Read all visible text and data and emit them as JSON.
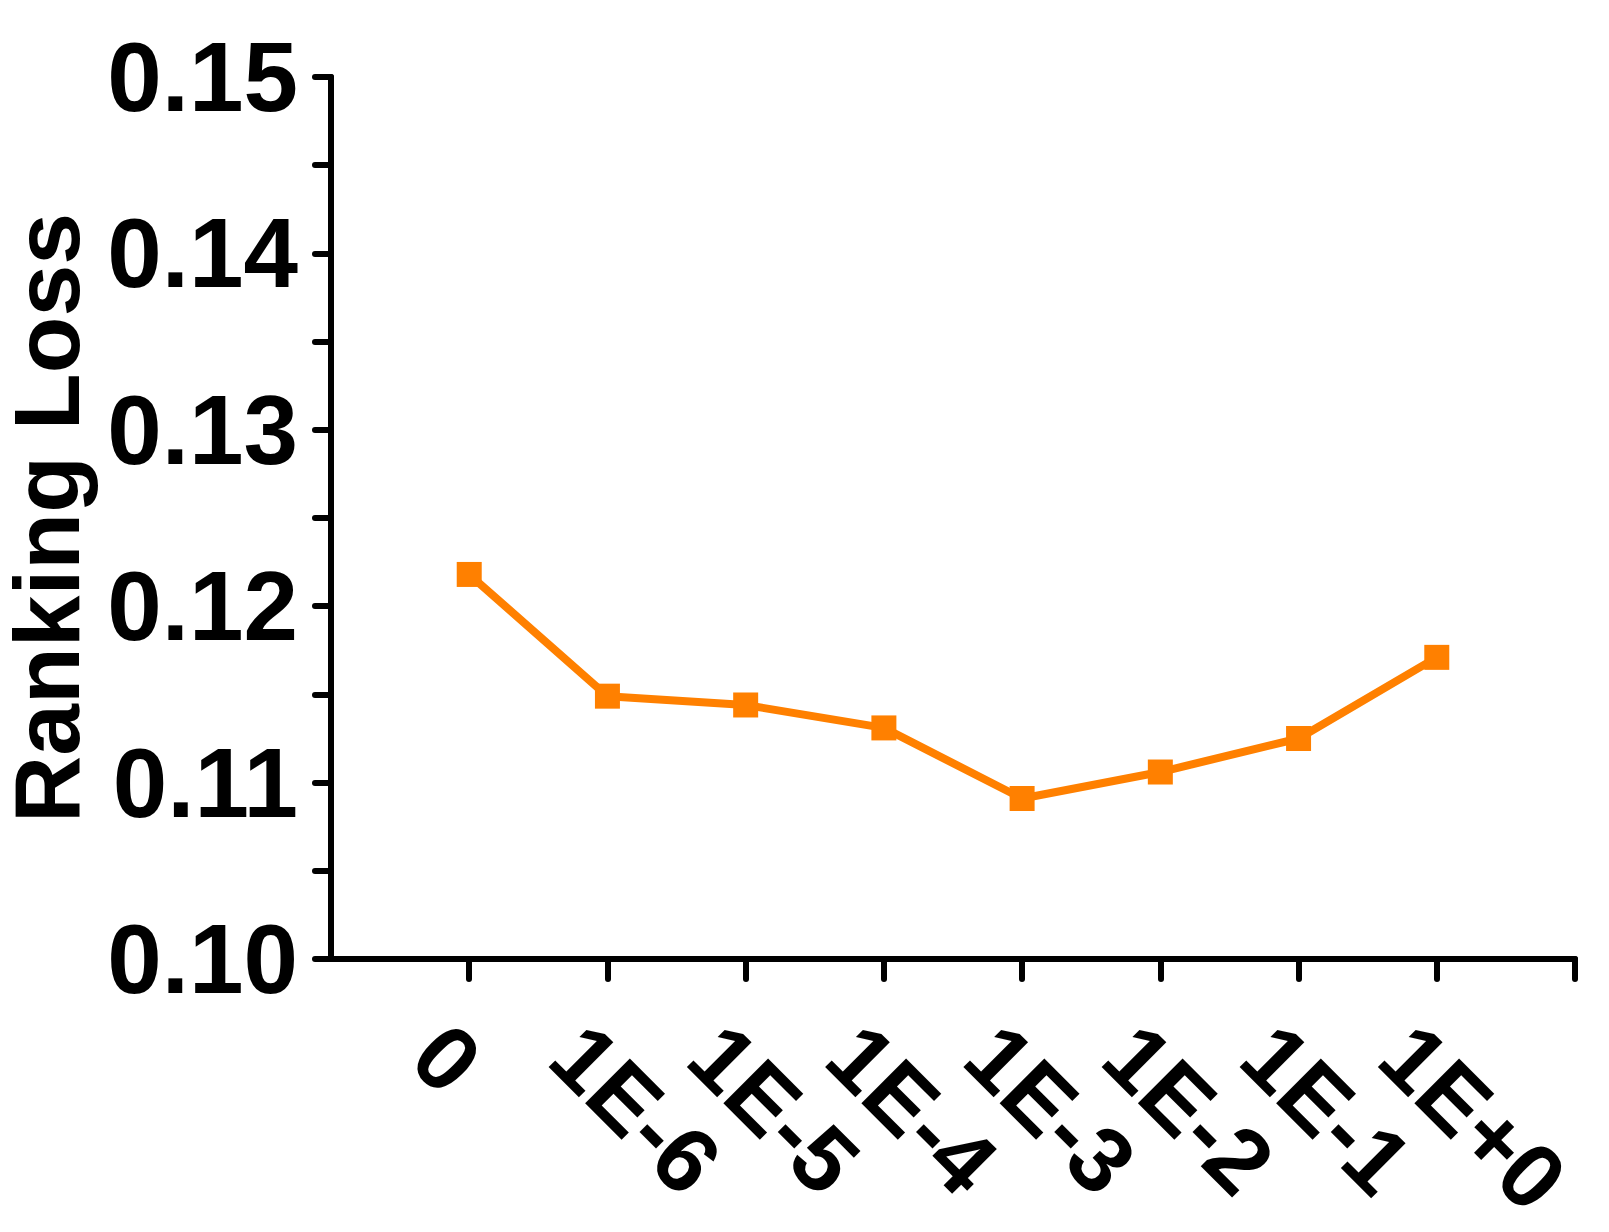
{
  "chart_data": {
    "type": "line",
    "ylabel": "Ranking Loss",
    "categories": [
      "0",
      "1E-6",
      "1E-5",
      "1E-4",
      "1E-3",
      "1E-2",
      "1E-1",
      "1E+0"
    ],
    "series": [
      {
        "color": "#ff8000",
        "values": [
          0.1218,
          0.1149,
          0.1144,
          0.1131,
          0.1091,
          0.1106,
          0.1125,
          0.1171
        ]
      }
    ],
    "ylim": [
      0.1,
      0.15
    ],
    "yticks": [
      {
        "value": 0.1,
        "label": "0.10"
      },
      {
        "value": 0.105,
        "label": null
      },
      0.11,
      {
        "value": 0.115,
        "label": null
      },
      0.12,
      {
        "value": 0.125,
        "label": null
      },
      0.13,
      {
        "value": 0.135,
        "label": null
      },
      0.14,
      {
        "value": 0.145,
        "label": null
      },
      0.15
    ],
    "marker": "square",
    "line_style": "solid"
  }
}
